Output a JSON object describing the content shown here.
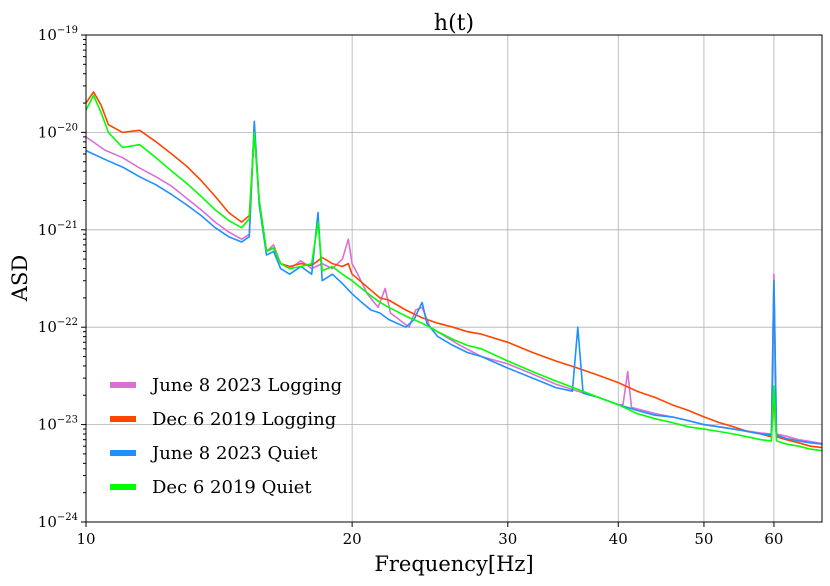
{
  "chart_data": {
    "type": "line",
    "title": "h(t)",
    "xlabel": "Frequency[Hz]",
    "ylabel": "ASD",
    "xscale": "log",
    "yscale": "log",
    "xlim": [
      10,
      68
    ],
    "ylim": [
      1e-24,
      1e-19
    ],
    "grid": true,
    "x_ticks": [
      {
        "value": 10,
        "label": "10"
      },
      {
        "value": 20,
        "label": "20"
      },
      {
        "value": 30,
        "label": "30"
      },
      {
        "value": 40,
        "label": "40"
      },
      {
        "value": 50,
        "label": "50"
      },
      {
        "value": 60,
        "label": "60"
      }
    ],
    "y_ticks": [
      {
        "value": 1e-19,
        "base": "10",
        "exp": "−19"
      },
      {
        "value": 1e-20,
        "base": "10",
        "exp": "−20"
      },
      {
        "value": 1e-21,
        "base": "10",
        "exp": "−21"
      },
      {
        "value": 1e-22,
        "base": "10",
        "exp": "−22"
      },
      {
        "value": 1e-23,
        "base": "10",
        "exp": "−23"
      },
      {
        "value": 1e-24,
        "base": "10",
        "exp": "−24"
      }
    ],
    "legend_position": "lower-left",
    "series": [
      {
        "name": "June 8 2023 Logging",
        "color": "#da70d6",
        "points": [
          [
            10.0,
            9e-21
          ],
          [
            10.5,
            6.6e-21
          ],
          [
            11.0,
            5.5e-21
          ],
          [
            11.5,
            4.3e-21
          ],
          [
            12.0,
            3.5e-21
          ],
          [
            12.5,
            2.8e-21
          ],
          [
            13.0,
            2.1e-21
          ],
          [
            13.5,
            1.6e-21
          ],
          [
            14.0,
            1.2e-21
          ],
          [
            14.5,
            9.5e-22
          ],
          [
            15.0,
            8e-22
          ],
          [
            15.3,
            9e-22
          ],
          [
            15.5,
            1.2e-20
          ],
          [
            15.7,
            2e-21
          ],
          [
            16.0,
            6e-22
          ],
          [
            16.3,
            7e-22
          ],
          [
            16.6,
            4.5e-22
          ],
          [
            17.0,
            4e-22
          ],
          [
            17.5,
            4.8e-22
          ],
          [
            18.0,
            4e-22
          ],
          [
            18.5,
            4.5e-22
          ],
          [
            19.0,
            4e-22
          ],
          [
            19.5,
            5e-22
          ],
          [
            19.8,
            8e-22
          ],
          [
            20.0,
            4.5e-22
          ],
          [
            20.3,
            3.5e-22
          ],
          [
            20.8,
            2.2e-22
          ],
          [
            21.4,
            1.6e-22
          ],
          [
            21.8,
            2.5e-22
          ],
          [
            22.1,
            1.4e-22
          ],
          [
            22.6,
            1.2e-22
          ],
          [
            23.2,
            1e-22
          ],
          [
            23.6,
            1.5e-22
          ],
          [
            24.0,
            1.6e-22
          ],
          [
            24.5,
            1e-22
          ],
          [
            25.5,
            8e-23
          ],
          [
            26.5,
            6.5e-23
          ],
          [
            28.0,
            5e-23
          ],
          [
            30.0,
            4.2e-23
          ],
          [
            32.0,
            3.3e-23
          ],
          [
            34.0,
            2.6e-23
          ],
          [
            36.0,
            2.2e-23
          ],
          [
            38.0,
            1.9e-23
          ],
          [
            40.0,
            1.6e-23
          ],
          [
            40.5,
            1.6e-23
          ],
          [
            41.0,
            3.5e-23
          ],
          [
            41.4,
            1.5e-23
          ],
          [
            44.0,
            1.3e-23
          ],
          [
            46.0,
            1.2e-23
          ],
          [
            48.0,
            1.1e-23
          ],
          [
            50.0,
            1e-23
          ],
          [
            52.0,
            9.5e-24
          ],
          [
            54.0,
            9e-24
          ],
          [
            56.0,
            8.6e-24
          ],
          [
            58.0,
            8.2e-24
          ],
          [
            59.6,
            8e-24
          ],
          [
            60.0,
            3.5e-22
          ],
          [
            60.4,
            8e-24
          ],
          [
            62.0,
            7.6e-24
          ],
          [
            64.0,
            7e-24
          ],
          [
            66.0,
            6.7e-24
          ],
          [
            68.0,
            6.4e-24
          ]
        ]
      },
      {
        "name": "Dec 6 2019 Logging",
        "color": "#ff4500",
        "points": [
          [
            10.0,
            2e-20
          ],
          [
            10.2,
            2.6e-20
          ],
          [
            10.4,
            1.9e-20
          ],
          [
            10.6,
            1.2e-20
          ],
          [
            11.0,
            1e-20
          ],
          [
            11.5,
            1.05e-20
          ],
          [
            12.0,
            8e-21
          ],
          [
            12.5,
            6e-21
          ],
          [
            13.0,
            4.5e-21
          ],
          [
            13.5,
            3.2e-21
          ],
          [
            14.0,
            2.2e-21
          ],
          [
            14.5,
            1.5e-21
          ],
          [
            15.0,
            1.2e-21
          ],
          [
            15.3,
            1.4e-21
          ],
          [
            15.5,
            1e-20
          ],
          [
            15.7,
            2e-21
          ],
          [
            16.0,
            6e-22
          ],
          [
            16.3,
            6.5e-22
          ],
          [
            16.6,
            4.5e-22
          ],
          [
            17.0,
            4.2e-22
          ],
          [
            17.5,
            4.5e-22
          ],
          [
            18.0,
            4.3e-22
          ],
          [
            18.5,
            5.2e-22
          ],
          [
            19.0,
            4.5e-22
          ],
          [
            19.5,
            4.2e-22
          ],
          [
            19.8,
            4.5e-22
          ],
          [
            20.0,
            3.5e-22
          ],
          [
            20.5,
            2.9e-22
          ],
          [
            21.0,
            2.4e-22
          ],
          [
            21.5,
            2e-22
          ],
          [
            22.0,
            1.9e-22
          ],
          [
            23.0,
            1.5e-22
          ],
          [
            24.0,
            1.25e-22
          ],
          [
            25.0,
            1.1e-22
          ],
          [
            26.0,
            1e-22
          ],
          [
            27.0,
            9e-23
          ],
          [
            28.0,
            8.5e-23
          ],
          [
            30.0,
            7e-23
          ],
          [
            32.0,
            5.5e-23
          ],
          [
            34.0,
            4.5e-23
          ],
          [
            36.0,
            3.8e-23
          ],
          [
            38.0,
            3.2e-23
          ],
          [
            40.0,
            2.7e-23
          ],
          [
            42.0,
            2.2e-23
          ],
          [
            44.0,
            1.9e-23
          ],
          [
            46.0,
            1.6e-23
          ],
          [
            48.0,
            1.4e-23
          ],
          [
            50.0,
            1.2e-23
          ],
          [
            52.0,
            1.05e-23
          ],
          [
            54.0,
            9.5e-24
          ],
          [
            56.0,
            8.5e-24
          ],
          [
            58.0,
            8e-24
          ],
          [
            59.6,
            7.5e-24
          ],
          [
            60.0,
            2e-23
          ],
          [
            60.4,
            7.5e-24
          ],
          [
            62.0,
            7e-24
          ],
          [
            64.0,
            6.5e-24
          ],
          [
            66.0,
            6e-24
          ],
          [
            68.0,
            5.8e-24
          ]
        ]
      },
      {
        "name": "June 8 2023 Quiet",
        "color": "#1e90ff",
        "points": [
          [
            10.0,
            6.5e-21
          ],
          [
            10.5,
            5.3e-21
          ],
          [
            11.0,
            4.4e-21
          ],
          [
            11.5,
            3.5e-21
          ],
          [
            12.0,
            2.9e-21
          ],
          [
            12.5,
            2.3e-21
          ],
          [
            13.0,
            1.8e-21
          ],
          [
            13.5,
            1.4e-21
          ],
          [
            14.0,
            1.05e-21
          ],
          [
            14.5,
            8.5e-22
          ],
          [
            15.0,
            7.5e-22
          ],
          [
            15.3,
            8.5e-22
          ],
          [
            15.5,
            1.3e-20
          ],
          [
            15.7,
            1.8e-21
          ],
          [
            16.0,
            5.5e-22
          ],
          [
            16.3,
            6e-22
          ],
          [
            16.6,
            4e-22
          ],
          [
            17.0,
            3.5e-22
          ],
          [
            17.5,
            4.2e-22
          ],
          [
            18.0,
            3.5e-22
          ],
          [
            18.3,
            1.5e-21
          ],
          [
            18.5,
            3e-22
          ],
          [
            19.0,
            3.5e-22
          ],
          [
            19.5,
            2.8e-22
          ],
          [
            20.0,
            2.2e-22
          ],
          [
            20.5,
            1.8e-22
          ],
          [
            21.0,
            1.5e-22
          ],
          [
            21.5,
            1.4e-22
          ],
          [
            22.0,
            1.2e-22
          ],
          [
            23.0,
            1e-22
          ],
          [
            23.5,
            1.2e-22
          ],
          [
            24.0,
            1.8e-22
          ],
          [
            24.3,
            1.1e-22
          ],
          [
            25.0,
            8e-23
          ],
          [
            26.0,
            6.5e-23
          ],
          [
            27.0,
            5.5e-23
          ],
          [
            28.0,
            5e-23
          ],
          [
            30.0,
            3.8e-23
          ],
          [
            32.0,
            3e-23
          ],
          [
            34.0,
            2.4e-23
          ],
          [
            35.5,
            2.2e-23
          ],
          [
            36.0,
            1e-22
          ],
          [
            36.5,
            2.1e-23
          ],
          [
            38.0,
            1.9e-23
          ],
          [
            40.0,
            1.6e-23
          ],
          [
            42.0,
            1.4e-23
          ],
          [
            44.0,
            1.25e-23
          ],
          [
            46.0,
            1.2e-23
          ],
          [
            48.0,
            1.1e-23
          ],
          [
            50.0,
            1e-23
          ],
          [
            52.0,
            9.5e-24
          ],
          [
            54.0,
            9e-24
          ],
          [
            56.0,
            8.5e-24
          ],
          [
            58.0,
            8e-24
          ],
          [
            59.6,
            7.8e-24
          ],
          [
            60.0,
            3e-22
          ],
          [
            60.4,
            7.8e-24
          ],
          [
            62.0,
            7.2e-24
          ],
          [
            64.0,
            6.8e-24
          ],
          [
            66.0,
            6.5e-24
          ],
          [
            68.0,
            6.3e-24
          ]
        ]
      },
      {
        "name": "Dec 6 2019 Quiet",
        "color": "#00ff00",
        "points": [
          [
            10.0,
            1.7e-20
          ],
          [
            10.2,
            2.4e-20
          ],
          [
            10.4,
            1.6e-20
          ],
          [
            10.6,
            1e-20
          ],
          [
            11.0,
            7e-21
          ],
          [
            11.5,
            7.5e-21
          ],
          [
            12.0,
            5.5e-21
          ],
          [
            12.5,
            4e-21
          ],
          [
            13.0,
            3e-21
          ],
          [
            13.5,
            2.2e-21
          ],
          [
            14.0,
            1.6e-21
          ],
          [
            14.5,
            1.25e-21
          ],
          [
            15.0,
            1.05e-21
          ],
          [
            15.3,
            1.3e-21
          ],
          [
            15.5,
            1e-20
          ],
          [
            15.7,
            2e-21
          ],
          [
            16.0,
            6e-22
          ],
          [
            16.3,
            6.5e-22
          ],
          [
            16.6,
            4.5e-22
          ],
          [
            17.0,
            4e-22
          ],
          [
            17.5,
            4.2e-22
          ],
          [
            18.0,
            4.5e-22
          ],
          [
            18.3,
            1.2e-21
          ],
          [
            18.5,
            3.8e-22
          ],
          [
            19.0,
            4.2e-22
          ],
          [
            19.5,
            3.5e-22
          ],
          [
            20.0,
            3e-22
          ],
          [
            20.5,
            2.5e-22
          ],
          [
            21.0,
            2.1e-22
          ],
          [
            21.5,
            1.8e-22
          ],
          [
            22.0,
            1.6e-22
          ],
          [
            23.0,
            1.3e-22
          ],
          [
            24.0,
            1.1e-22
          ],
          [
            25.0,
            9e-23
          ],
          [
            26.0,
            7.5e-23
          ],
          [
            27.0,
            6.5e-23
          ],
          [
            28.0,
            6e-23
          ],
          [
            30.0,
            4.5e-23
          ],
          [
            32.0,
            3.5e-23
          ],
          [
            34.0,
            2.8e-23
          ],
          [
            36.0,
            2.3e-23
          ],
          [
            38.0,
            1.9e-23
          ],
          [
            40.0,
            1.6e-23
          ],
          [
            42.0,
            1.3e-23
          ],
          [
            44.0,
            1.15e-23
          ],
          [
            46.0,
            1.05e-23
          ],
          [
            48.0,
            9.5e-24
          ],
          [
            50.0,
            9e-24
          ],
          [
            52.0,
            8.5e-24
          ],
          [
            54.0,
            8e-24
          ],
          [
            56.0,
            7.5e-24
          ],
          [
            58.0,
            7e-24
          ],
          [
            59.6,
            6.8e-24
          ],
          [
            60.0,
            2.5e-23
          ],
          [
            60.4,
            6.8e-24
          ],
          [
            62.0,
            6.3e-24
          ],
          [
            64.0,
            6e-24
          ],
          [
            66.0,
            5.6e-24
          ],
          [
            68.0,
            5.4e-24
          ]
        ]
      }
    ]
  }
}
